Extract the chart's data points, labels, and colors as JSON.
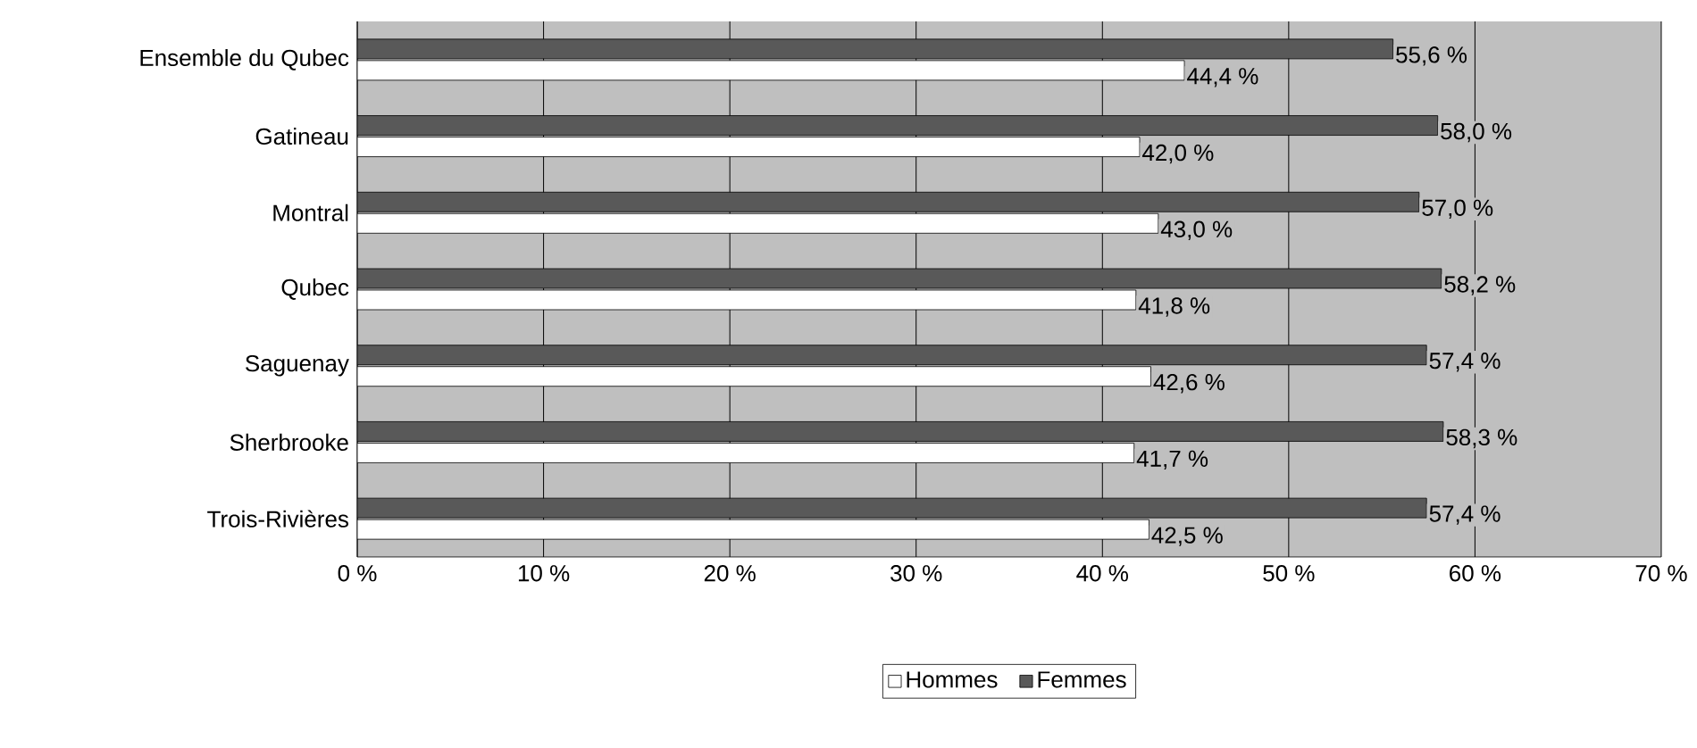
{
  "chart_data": {
    "type": "bar",
    "orientation": "horizontal",
    "categories": [
      "Ensemble du Qubec",
      "Gatineau",
      "Montral",
      "Qubec",
      "Saguenay",
      "Sherbrooke",
      "Trois-Rivières"
    ],
    "series": [
      {
        "name": "Hommes",
        "color": "#ffffff",
        "values": [
          44.4,
          42.0,
          43.0,
          41.8,
          42.6,
          41.7,
          42.5
        ],
        "value_labels": [
          "44,4 %",
          "42,0 %",
          "43,0 %",
          "41,8 %",
          "42,6 %",
          "41,7 %",
          "42,5 %"
        ]
      },
      {
        "name": "Femmes",
        "color": "#595959",
        "values": [
          55.6,
          58.0,
          57.0,
          58.2,
          57.4,
          58.3,
          57.4
        ],
        "value_labels": [
          "55,6 %",
          "58,0 %",
          "57,0 %",
          "58,2 %",
          "57,4 %",
          "58,3 %",
          "57,4 %"
        ]
      }
    ],
    "xlim": [
      0,
      70
    ],
    "xticks": [
      {
        "value": 0,
        "label": "0 %"
      },
      {
        "value": 10,
        "label": "10 %"
      },
      {
        "value": 20,
        "label": "20 %"
      },
      {
        "value": 30,
        "label": "30 %"
      },
      {
        "value": 40,
        "label": "40 %"
      },
      {
        "value": 50,
        "label": "50 %"
      },
      {
        "value": 60,
        "label": "60 %"
      },
      {
        "value": 70,
        "label": "70 %"
      }
    ],
    "grid": "x",
    "legend": "bottom"
  }
}
